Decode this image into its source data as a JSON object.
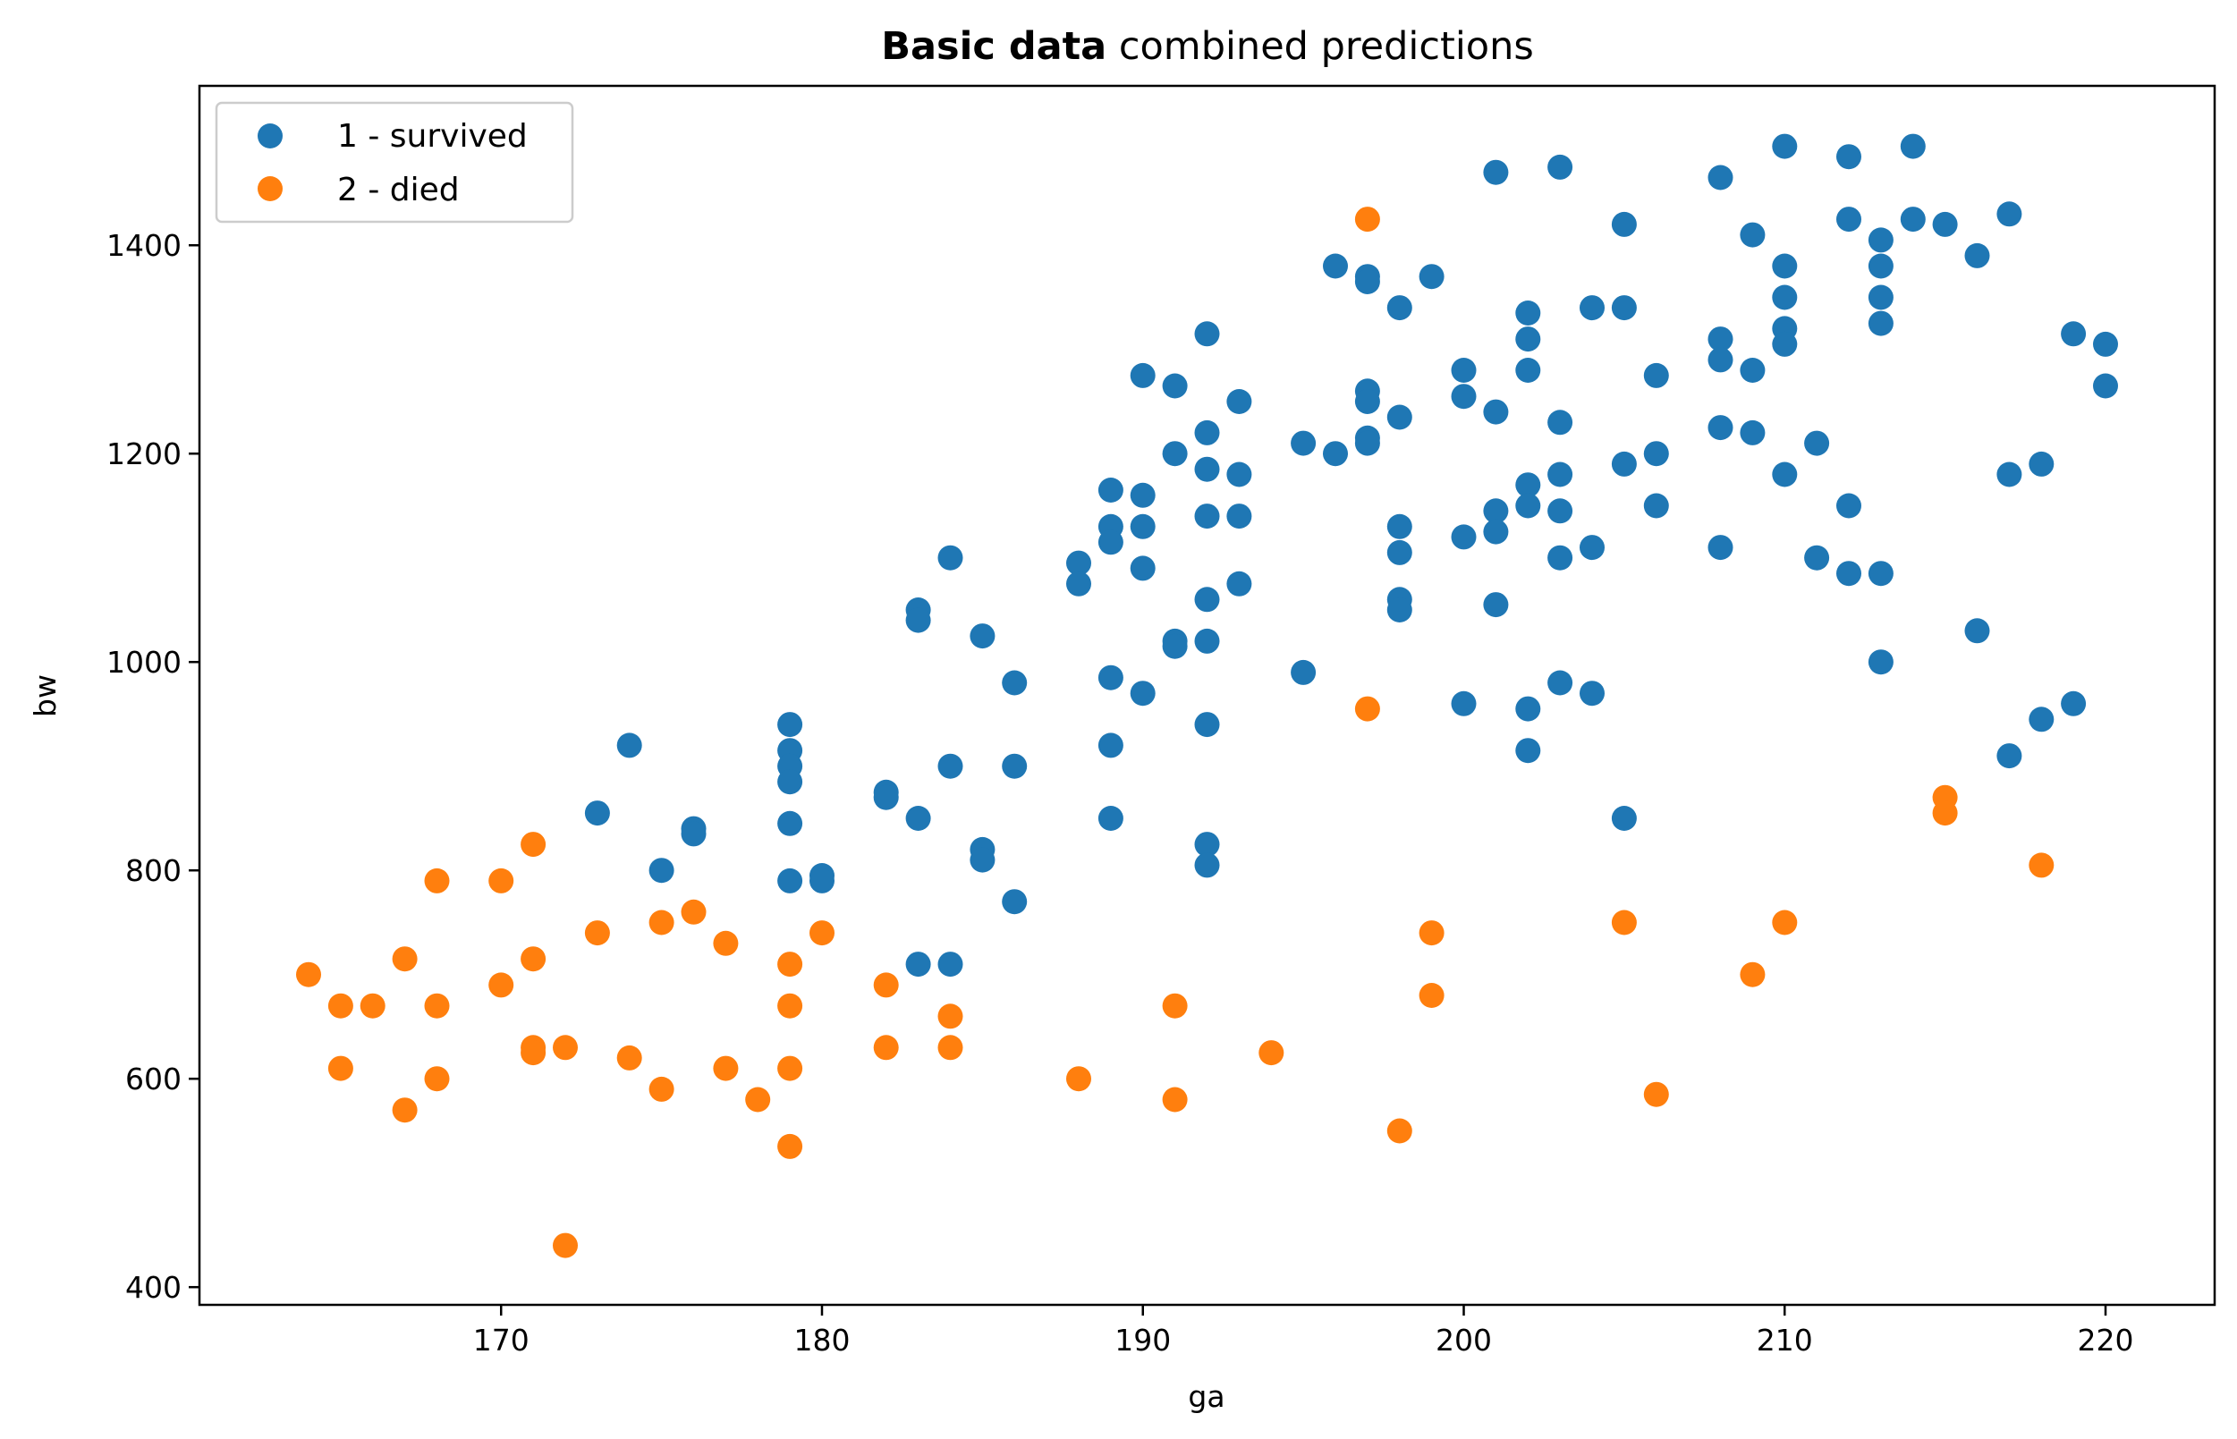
{
  "chart_data": {
    "type": "scatter",
    "title_bold": "Basic data",
    "title_rest": " combined predictions",
    "xlabel": "ga",
    "ylabel": "bw",
    "xlim": [
      160.6,
      223.4
    ],
    "ylim": [
      383,
      1553
    ],
    "xticks": [
      170,
      180,
      190,
      200,
      210,
      220
    ],
    "yticks": [
      400,
      600,
      800,
      1000,
      1200,
      1400
    ],
    "grid": false,
    "legend_position": "top-left",
    "series": [
      {
        "name": "1 - survived",
        "color": "#1f77b4",
        "points": [
          [
            173,
            855
          ],
          [
            174,
            920
          ],
          [
            175,
            800
          ],
          [
            176,
            840
          ],
          [
            176,
            835
          ],
          [
            179,
            940
          ],
          [
            179,
            915
          ],
          [
            179,
            900
          ],
          [
            179,
            885
          ],
          [
            179,
            845
          ],
          [
            179,
            790
          ],
          [
            180,
            795
          ],
          [
            180,
            790
          ],
          [
            182,
            875
          ],
          [
            182,
            870
          ],
          [
            183,
            1050
          ],
          [
            183,
            1040
          ],
          [
            183,
            850
          ],
          [
            183,
            710
          ],
          [
            184,
            1100
          ],
          [
            184,
            900
          ],
          [
            184,
            710
          ],
          [
            185,
            1025
          ],
          [
            185,
            820
          ],
          [
            185,
            810
          ],
          [
            186,
            980
          ],
          [
            186,
            900
          ],
          [
            186,
            770
          ],
          [
            188,
            1095
          ],
          [
            188,
            1075
          ],
          [
            189,
            1165
          ],
          [
            189,
            1130
          ],
          [
            189,
            1115
          ],
          [
            189,
            985
          ],
          [
            189,
            920
          ],
          [
            189,
            850
          ],
          [
            190,
            1275
          ],
          [
            190,
            1160
          ],
          [
            190,
            1130
          ],
          [
            190,
            1090
          ],
          [
            190,
            970
          ],
          [
            191,
            1265
          ],
          [
            191,
            1200
          ],
          [
            191,
            1020
          ],
          [
            191,
            1015
          ],
          [
            192,
            1315
          ],
          [
            192,
            1220
          ],
          [
            192,
            1185
          ],
          [
            192,
            1140
          ],
          [
            192,
            1060
          ],
          [
            192,
            1020
          ],
          [
            192,
            940
          ],
          [
            192,
            825
          ],
          [
            192,
            805
          ],
          [
            193,
            1250
          ],
          [
            193,
            1180
          ],
          [
            193,
            1140
          ],
          [
            193,
            1075
          ],
          [
            195,
            1210
          ],
          [
            195,
            990
          ],
          [
            196,
            1380
          ],
          [
            196,
            1200
          ],
          [
            197,
            1370
          ],
          [
            197,
            1365
          ],
          [
            197,
            1260
          ],
          [
            197,
            1250
          ],
          [
            197,
            1215
          ],
          [
            197,
            1210
          ],
          [
            198,
            1340
          ],
          [
            198,
            1235
          ],
          [
            198,
            1130
          ],
          [
            198,
            1105
          ],
          [
            198,
            1060
          ],
          [
            198,
            1050
          ],
          [
            199,
            1370
          ],
          [
            200,
            1280
          ],
          [
            200,
            1255
          ],
          [
            200,
            1120
          ],
          [
            200,
            960
          ],
          [
            201,
            1470
          ],
          [
            201,
            1240
          ],
          [
            201,
            1145
          ],
          [
            201,
            1125
          ],
          [
            201,
            1055
          ],
          [
            202,
            1335
          ],
          [
            202,
            1310
          ],
          [
            202,
            1280
          ],
          [
            202,
            1170
          ],
          [
            202,
            1150
          ],
          [
            202,
            955
          ],
          [
            202,
            915
          ],
          [
            203,
            1475
          ],
          [
            203,
            1230
          ],
          [
            203,
            1180
          ],
          [
            203,
            1145
          ],
          [
            203,
            1100
          ],
          [
            203,
            980
          ],
          [
            204,
            1340
          ],
          [
            204,
            1110
          ],
          [
            204,
            970
          ],
          [
            205,
            1420
          ],
          [
            205,
            1340
          ],
          [
            205,
            1190
          ],
          [
            205,
            850
          ],
          [
            206,
            1275
          ],
          [
            206,
            1200
          ],
          [
            206,
            1150
          ],
          [
            208,
            1465
          ],
          [
            208,
            1310
          ],
          [
            208,
            1290
          ],
          [
            208,
            1225
          ],
          [
            208,
            1110
          ],
          [
            209,
            1410
          ],
          [
            209,
            1280
          ],
          [
            209,
            1220
          ],
          [
            210,
            1495
          ],
          [
            210,
            1380
          ],
          [
            210,
            1350
          ],
          [
            210,
            1320
          ],
          [
            210,
            1305
          ],
          [
            210,
            1180
          ],
          [
            211,
            1210
          ],
          [
            211,
            1100
          ],
          [
            212,
            1485
          ],
          [
            212,
            1425
          ],
          [
            212,
            1150
          ],
          [
            212,
            1085
          ],
          [
            213,
            1405
          ],
          [
            213,
            1380
          ],
          [
            213,
            1350
          ],
          [
            213,
            1325
          ],
          [
            213,
            1085
          ],
          [
            213,
            1000
          ],
          [
            214,
            1495
          ],
          [
            214,
            1425
          ],
          [
            215,
            1420
          ],
          [
            216,
            1390
          ],
          [
            216,
            1030
          ],
          [
            217,
            1430
          ],
          [
            217,
            1180
          ],
          [
            217,
            910
          ],
          [
            218,
            1190
          ],
          [
            218,
            945
          ],
          [
            219,
            1315
          ],
          [
            219,
            960
          ],
          [
            220,
            1305
          ],
          [
            220,
            1265
          ]
        ]
      },
      {
        "name": "2 - died",
        "color": "#ff7f0e",
        "points": [
          [
            164,
            700
          ],
          [
            165,
            670
          ],
          [
            165,
            610
          ],
          [
            166,
            670
          ],
          [
            167,
            715
          ],
          [
            167,
            570
          ],
          [
            168,
            790
          ],
          [
            168,
            670
          ],
          [
            168,
            600
          ],
          [
            170,
            790
          ],
          [
            170,
            690
          ],
          [
            171,
            825
          ],
          [
            171,
            715
          ],
          [
            171,
            630
          ],
          [
            171,
            625
          ],
          [
            172,
            630
          ],
          [
            172,
            440
          ],
          [
            173,
            740
          ],
          [
            174,
            620
          ],
          [
            175,
            750
          ],
          [
            175,
            590
          ],
          [
            176,
            760
          ],
          [
            177,
            730
          ],
          [
            177,
            610
          ],
          [
            178,
            580
          ],
          [
            179,
            710
          ],
          [
            179,
            670
          ],
          [
            179,
            610
          ],
          [
            179,
            535
          ],
          [
            180,
            740
          ],
          [
            182,
            690
          ],
          [
            182,
            630
          ],
          [
            184,
            660
          ],
          [
            184,
            630
          ],
          [
            188,
            600
          ],
          [
            191,
            670
          ],
          [
            191,
            580
          ],
          [
            194,
            625
          ],
          [
            197,
            1425
          ],
          [
            197,
            955
          ],
          [
            198,
            550
          ],
          [
            199,
            740
          ],
          [
            199,
            680
          ],
          [
            205,
            750
          ],
          [
            206,
            585
          ],
          [
            209,
            700
          ],
          [
            210,
            750
          ],
          [
            215,
            870
          ],
          [
            215,
            855
          ],
          [
            218,
            805
          ]
        ]
      }
    ]
  }
}
